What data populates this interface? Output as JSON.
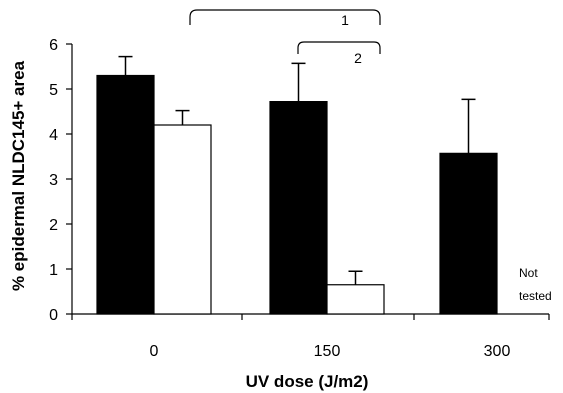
{
  "chart_data": {
    "type": "bar",
    "title": "",
    "xlabel": "UV dose (J/m2)",
    "ylabel": "% epidermal NLDC145+ area",
    "categories": [
      "0",
      "150",
      "300"
    ],
    "ylim": [
      0,
      6
    ],
    "yticks": [
      "0",
      "1",
      "2",
      "3",
      "4",
      "5",
      "6"
    ],
    "series": [
      {
        "fill": "#000000",
        "values": [
          5.3,
          4.72,
          3.57
        ],
        "errors": [
          0.42,
          0.85,
          1.2
        ]
      },
      {
        "fill": "#ffffff",
        "values": [
          4.2,
          0.65,
          null
        ],
        "errors": [
          0.32,
          0.3,
          null
        ]
      }
    ],
    "annotations": {
      "not_tested_line1": "Not",
      "not_tested_line2": "tested",
      "brackets": [
        {
          "label": "1",
          "from_category": "0",
          "to_category": "150"
        },
        {
          "label": "2",
          "from_category": "150",
          "to_category": "150"
        }
      ]
    },
    "grid": false,
    "legend": "none"
  }
}
